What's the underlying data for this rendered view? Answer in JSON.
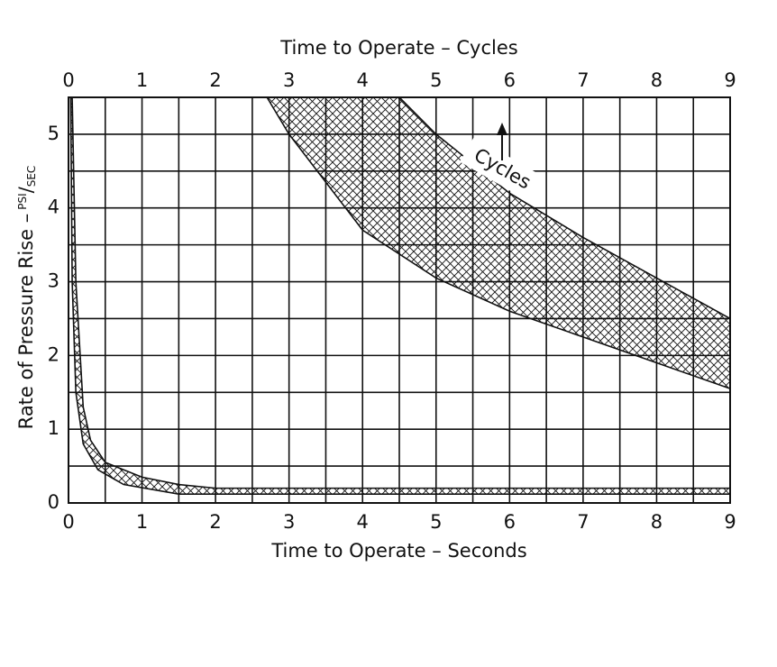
{
  "chart_data": {
    "type": "band",
    "xlabel": "Time to Operate – Seconds",
    "x2label": "Time to Operate – Cycles",
    "ylabel": {
      "text": "Rate of Pressure Rise –",
      "unit_top": "PSI",
      "unit_sep": "/",
      "unit_bottom": "SEC"
    },
    "annotation": "Cycles",
    "xlim": [
      0,
      9
    ],
    "xticks": [
      0,
      1,
      2,
      3,
      4,
      5,
      6,
      7,
      8,
      9
    ],
    "xminor": [
      0.5,
      1.5,
      2.5,
      3.5,
      4.5,
      5.5,
      6.5,
      7.5,
      8.5
    ],
    "x2lim": [
      0,
      9
    ],
    "x2ticks": [
      0,
      1,
      2,
      3,
      4,
      5,
      6,
      7,
      8,
      9
    ],
    "ylim": [
      0,
      5.5
    ],
    "yticks": [
      0,
      1,
      2,
      3,
      4,
      5
    ],
    "yminor": [
      0.5,
      1.5,
      2.5,
      3.5,
      4.5
    ],
    "grid": true,
    "bands": [
      {
        "axis": "x",
        "upper": {
          "x": [
            0.05,
            0.1,
            0.2,
            0.3,
            0.5,
            1,
            1.5,
            2,
            9
          ],
          "values": [
            5.5,
            3,
            1.3,
            0.85,
            0.55,
            0.35,
            0.25,
            0.2,
            0.2
          ]
        },
        "lower": {
          "x": [
            0.03,
            0.05,
            0.1,
            0.2,
            0.4,
            0.75,
            1.5,
            2,
            9
          ],
          "values": [
            5.5,
            3,
            1.5,
            0.8,
            0.45,
            0.25,
            0.12,
            0.12,
            0.12
          ]
        }
      },
      {
        "axis": "x2",
        "upper": {
          "x": [
            4.5,
            5,
            6,
            7,
            8,
            9
          ],
          "values": [
            5.5,
            5,
            4.2,
            3.6,
            3.05,
            2.5
          ]
        },
        "lower": {
          "x": [
            2.7,
            3,
            4,
            5,
            6,
            7,
            8,
            9
          ],
          "values": [
            5.5,
            5,
            3.7,
            3.05,
            2.6,
            2.25,
            1.9,
            1.55
          ]
        }
      }
    ]
  }
}
